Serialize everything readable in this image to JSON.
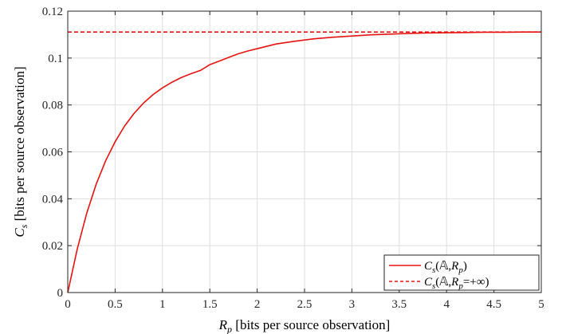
{
  "chart_data": {
    "type": "line",
    "title": "",
    "xlabel": {
      "symbol": "R",
      "subscript": "p",
      "text": " [bits per source observation]"
    },
    "ylabel": {
      "symbol": "C",
      "subscript": "s",
      "text": " [bits per source observation]"
    },
    "xlim": [
      0,
      5
    ],
    "ylim": [
      0,
      0.12
    ],
    "x_ticks": [
      0,
      0.5,
      1,
      1.5,
      2,
      2.5,
      3,
      3.5,
      4,
      4.5,
      5
    ],
    "x_tick_labels": [
      "0",
      "0.5",
      "1",
      "1.5",
      "2",
      "2.5",
      "3",
      "3.5",
      "4",
      "4.5",
      "5"
    ],
    "y_ticks": [
      0,
      0.02,
      0.04,
      0.06,
      0.08,
      0.1,
      0.12
    ],
    "y_tick_labels": [
      "0",
      "0.02",
      "0.04",
      "0.06",
      "0.08",
      "0.1",
      "0.12"
    ],
    "grid": true,
    "legend_position": "bottom-right",
    "series": [
      {
        "name": "Cs(𝔸,Rp)",
        "style": "solid",
        "color": "#e8130f",
        "x": [
          0,
          0.1,
          0.2,
          0.3,
          0.4,
          0.5,
          0.6,
          0.7,
          0.8,
          0.9,
          1.0,
          1.1,
          1.2,
          1.3,
          1.4,
          1.5,
          1.6,
          1.7,
          1.8,
          1.9,
          2.0,
          2.2,
          2.4,
          2.6,
          2.8,
          3.0,
          3.2,
          3.4,
          3.6,
          3.8,
          4.0,
          4.2,
          4.4,
          4.6,
          4.8,
          5.0
        ],
        "y": [
          0,
          0.0185,
          0.0338,
          0.0462,
          0.0562,
          0.0643,
          0.071,
          0.0764,
          0.0808,
          0.0844,
          0.0873,
          0.0897,
          0.0917,
          0.0933,
          0.0947,
          0.0972,
          0.0987,
          0.1003,
          0.1018,
          0.103,
          0.104,
          0.106,
          0.1072,
          0.1082,
          0.1089,
          0.1094,
          0.1099,
          0.1102,
          0.1105,
          0.1107,
          0.1108,
          0.1109,
          0.111,
          0.111,
          0.1111,
          0.1111
        ]
      },
      {
        "name": "Cs(𝔸,Rp=+∞)",
        "style": "dashed",
        "color": "#e8130f",
        "x": [
          0,
          5
        ],
        "y": [
          0.1111,
          0.1111
        ]
      }
    ]
  }
}
